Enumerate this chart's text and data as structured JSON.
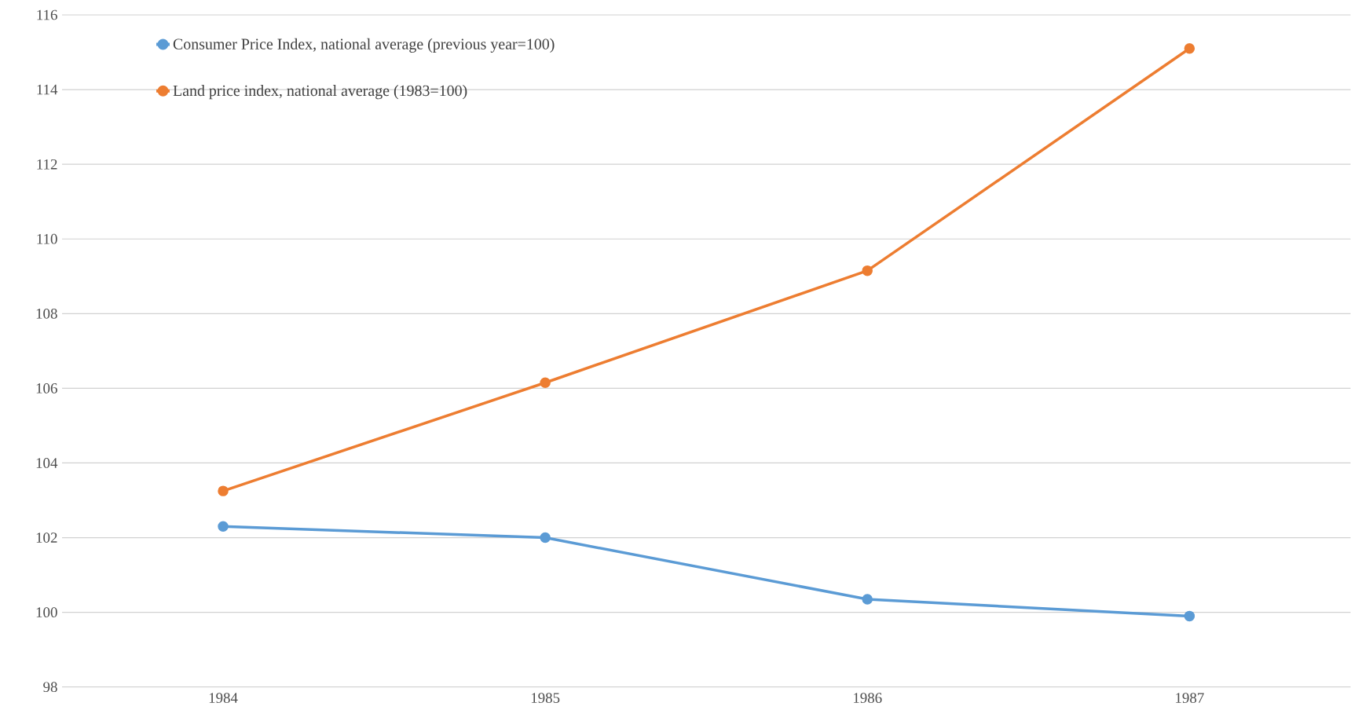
{
  "chart_data": {
    "type": "line",
    "categories": [
      "1984",
      "1985",
      "1986",
      "1987"
    ],
    "series": [
      {
        "name": "Consumer Price Index, national average (previous year=100)",
        "color": "#5b9bd5",
        "values": [
          102.3,
          102.0,
          100.35,
          99.9
        ]
      },
      {
        "name": "Land price index, national average (1983=100)",
        "color": "#ed7d31",
        "values": [
          103.25,
          106.15,
          109.15,
          115.1
        ]
      }
    ],
    "ylim": [
      98,
      116
    ],
    "yticks": [
      98,
      100,
      102,
      104,
      106,
      108,
      110,
      112,
      114,
      116
    ],
    "grid": "y",
    "legend": "top left",
    "marker": "circle",
    "line_style": "solid"
  }
}
